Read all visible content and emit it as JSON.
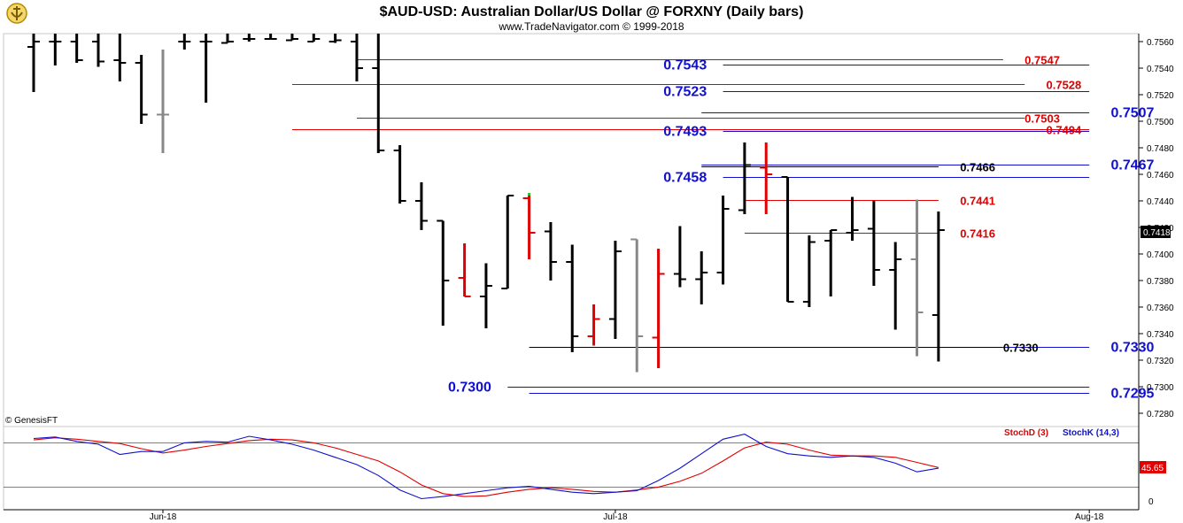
{
  "header": {
    "title": "$AUD-USD:  Australian Dollar/US Dollar @ FORXNY  (Daily bars)",
    "subtitle": "www.TradeNavigator.com © 1999-2018"
  },
  "colors": {
    "black": "#000000",
    "red": "#e00000",
    "gray": "#888888",
    "green": "#33bb33",
    "blue": "#1010d0",
    "stoch_d": "#e00000",
    "stoch_k": "#1010d0"
  },
  "chart_data": [
    {
      "type": "ohlc",
      "x_start_date": "2018-05-24",
      "ylim": [
        0.727,
        0.7566
      ],
      "y_ticks": [
        "0.7560",
        "0.7540",
        "0.7520",
        "0.7500",
        "0.7480",
        "0.7460",
        "0.7440",
        "0.7420",
        "0.7400",
        "0.7380",
        "0.7360",
        "0.7340",
        "0.7320",
        "0.7300",
        "0.7280"
      ],
      "x_ticks": [
        {
          "label": "Jun-18",
          "date": "2018-06-01"
        },
        {
          "label": "Jul-18",
          "date": "2018-07-02"
        },
        {
          "label": "Aug-18",
          "date": "2018-08-01"
        }
      ],
      "current_price_label": "0.7418",
      "watermark": "© GenesisFT",
      "bars": [
        {
          "date": "2018-05-24",
          "o": 0.7556,
          "h": 0.7566,
          "l": 0.7522,
          "c": 0.756,
          "color": "black"
        },
        {
          "date": "2018-05-25",
          "o": 0.756,
          "h": 0.7566,
          "l": 0.7542,
          "c": 0.756,
          "color": "black"
        },
        {
          "date": "2018-05-28",
          "o": 0.756,
          "h": 0.7566,
          "l": 0.7544,
          "c": 0.7546,
          "color": "black"
        },
        {
          "date": "2018-05-29",
          "o": 0.756,
          "h": 0.7566,
          "l": 0.7541,
          "c": 0.7545,
          "color": "black"
        },
        {
          "date": "2018-05-30",
          "o": 0.7546,
          "h": 0.7566,
          "l": 0.753,
          "c": 0.7544,
          "color": "black"
        },
        {
          "date": "2018-05-31",
          "o": 0.7544,
          "h": 0.755,
          "l": 0.7498,
          "c": 0.7505,
          "color": "black"
        },
        {
          "date": "2018-06-01",
          "o": 0.7505,
          "h": 0.7554,
          "l": 0.7476,
          "c": 0.7505,
          "color": "gray"
        },
        {
          "date": "2018-06-04",
          "o": 0.756,
          "h": 0.7566,
          "l": 0.7554,
          "c": 0.756,
          "color": "black"
        },
        {
          "date": "2018-06-05",
          "o": 0.756,
          "h": 0.7566,
          "l": 0.7514,
          "c": 0.756,
          "color": "black"
        },
        {
          "date": "2018-06-06",
          "o": 0.7559,
          "h": 0.7566,
          "l": 0.7559,
          "c": 0.756,
          "color": "black"
        },
        {
          "date": "2018-06-07",
          "o": 0.7562,
          "h": 0.7566,
          "l": 0.756,
          "c": 0.7562,
          "color": "black"
        },
        {
          "date": "2018-06-08",
          "o": 0.7562,
          "h": 0.7566,
          "l": 0.7562,
          "c": 0.7562,
          "color": "black"
        },
        {
          "date": "2018-06-11",
          "o": 0.7561,
          "h": 0.7566,
          "l": 0.7561,
          "c": 0.7562,
          "color": "black"
        },
        {
          "date": "2018-06-12",
          "o": 0.756,
          "h": 0.7566,
          "l": 0.756,
          "c": 0.7562,
          "color": "black"
        },
        {
          "date": "2018-06-13",
          "o": 0.756,
          "h": 0.7566,
          "l": 0.7559,
          "c": 0.7561,
          "color": "black"
        },
        {
          "date": "2018-06-14",
          "o": 0.756,
          "h": 0.7566,
          "l": 0.753,
          "c": 0.754,
          "color": "black"
        },
        {
          "date": "2018-06-15",
          "o": 0.754,
          "h": 0.7566,
          "l": 0.7476,
          "c": 0.7478,
          "color": "black"
        },
        {
          "date": "2018-06-18",
          "o": 0.7478,
          "h": 0.7482,
          "l": 0.7438,
          "c": 0.744,
          "color": "black"
        },
        {
          "date": "2018-06-19",
          "o": 0.744,
          "h": 0.7454,
          "l": 0.7418,
          "c": 0.7425,
          "color": "black"
        },
        {
          "date": "2018-06-20",
          "o": 0.7425,
          "h": 0.7425,
          "l": 0.7346,
          "c": 0.738,
          "color": "black"
        },
        {
          "date": "2018-06-21",
          "o": 0.7382,
          "h": 0.7408,
          "l": 0.7368,
          "c": 0.7368,
          "color": "red"
        },
        {
          "date": "2018-06-22",
          "o": 0.7368,
          "h": 0.7393,
          "l": 0.7344,
          "c": 0.7376,
          "color": "black"
        },
        {
          "date": "2018-06-25",
          "o": 0.7374,
          "h": 0.7444,
          "l": 0.7374,
          "c": 0.7444,
          "color": "black"
        },
        {
          "date": "2018-06-26",
          "o": 0.7442,
          "h": 0.7444,
          "l": 0.7396,
          "c": 0.7416,
          "color": "red"
        },
        {
          "date": "2018-06-27",
          "o": 0.7417,
          "h": 0.7424,
          "l": 0.738,
          "c": 0.7394,
          "color": "black"
        },
        {
          "date": "2018-06-28",
          "o": 0.7394,
          "h": 0.7407,
          "l": 0.7326,
          "c": 0.7338,
          "color": "black"
        },
        {
          "date": "2018-06-29",
          "o": 0.7338,
          "h": 0.7362,
          "l": 0.7331,
          "c": 0.7351,
          "color": "red"
        },
        {
          "date": "2018-07-02",
          "o": 0.7351,
          "h": 0.741,
          "l": 0.7336,
          "c": 0.7402,
          "color": "black"
        },
        {
          "date": "2018-07-03",
          "o": 0.7411,
          "h": 0.7411,
          "l": 0.7311,
          "c": 0.7338,
          "color": "gray"
        },
        {
          "date": "2018-07-04",
          "o": 0.7337,
          "h": 0.7404,
          "l": 0.7314,
          "c": 0.7385,
          "color": "red"
        },
        {
          "date": "2018-07-05",
          "o": 0.7385,
          "h": 0.7421,
          "l": 0.7375,
          "c": 0.7381,
          "color": "black"
        },
        {
          "date": "2018-07-06",
          "o": 0.7381,
          "h": 0.7402,
          "l": 0.7362,
          "c": 0.7386,
          "color": "black"
        },
        {
          "date": "2018-07-09",
          "o": 0.7386,
          "h": 0.7444,
          "l": 0.7377,
          "c": 0.7434,
          "color": "black"
        },
        {
          "date": "2018-07-10",
          "o": 0.7433,
          "h": 0.7484,
          "l": 0.743,
          "c": 0.7467,
          "color": "black"
        },
        {
          "date": "2018-07-11",
          "o": 0.7465,
          "h": 0.7484,
          "l": 0.743,
          "c": 0.746,
          "color": "red"
        },
        {
          "date": "2018-07-12",
          "o": 0.7458,
          "h": 0.7458,
          "l": 0.7364,
          "c": 0.7364,
          "color": "black"
        },
        {
          "date": "2018-07-13",
          "o": 0.7364,
          "h": 0.7414,
          "l": 0.736,
          "c": 0.7409,
          "color": "black"
        },
        {
          "date": "2018-07-16",
          "o": 0.741,
          "h": 0.7418,
          "l": 0.7368,
          "c": 0.7418,
          "color": "black"
        },
        {
          "date": "2018-07-17",
          "o": 0.7416,
          "h": 0.7443,
          "l": 0.741,
          "c": 0.7418,
          "color": "black"
        },
        {
          "date": "2018-07-18",
          "o": 0.7419,
          "h": 0.744,
          "l": 0.7376,
          "c": 0.7388,
          "color": "black"
        },
        {
          "date": "2018-07-19",
          "o": 0.7388,
          "h": 0.7409,
          "l": 0.7343,
          "c": 0.7396,
          "color": "black"
        },
        {
          "date": "2018-07-20",
          "o": 0.7396,
          "h": 0.7441,
          "l": 0.7323,
          "c": 0.7356,
          "color": "gray"
        },
        {
          "date": "2018-07-23",
          "o": 0.7354,
          "h": 0.7432,
          "l": 0.7319,
          "c": 0.7418,
          "color": "black"
        }
      ],
      "levels": [
        {
          "value": "0.7547",
          "y": 0.7547,
          "color": "red",
          "x0_date": "2018-06-14",
          "x1_date": "2018-07-26",
          "label_date": "2018-07-27",
          "anchor": "start"
        },
        {
          "value": "0.7543",
          "y": 0.7543,
          "color": "blue",
          "x0_date": "2018-07-09",
          "x1_date": "2018-08-01",
          "label_date": "2018-07-06",
          "anchor": "end"
        },
        {
          "value": "0.7528",
          "y": 0.7528,
          "color": "red",
          "x0_date": "2018-06-11",
          "x1_date": "2018-07-27",
          "label_date": "2018-07-30",
          "anchor": "start"
        },
        {
          "value": "0.7523",
          "y": 0.7523,
          "color": "blue",
          "x0_date": "2018-07-09",
          "x1_date": "2018-08-01",
          "label_date": "2018-07-06",
          "anchor": "end"
        },
        {
          "value": "0.7507",
          "y": 0.7507,
          "color": "blue",
          "x0_date": "2018-07-06",
          "x1_date": "2018-08-01",
          "label_date": "2018-08-02",
          "anchor": "start"
        },
        {
          "value": "0.7503",
          "y": 0.7503,
          "color": "red",
          "x0_date": "2018-06-14",
          "x1_date": "2018-07-27",
          "label_date": "2018-07-27",
          "anchor": "start"
        },
        {
          "value": "0.7494",
          "y": 0.7494,
          "color": "red",
          "x0_date": "2018-06-11",
          "x1_date": "2018-08-01",
          "label_date": "2018-07-30",
          "anchor": "start"
        },
        {
          "value": "0.7493",
          "y": 0.7493,
          "color": "blue",
          "x0_date": "2018-07-09",
          "x1_date": "2018-08-01",
          "label_date": "2018-07-06",
          "anchor": "end"
        },
        {
          "value": "0.7467",
          "y": 0.7467,
          "color": "blue",
          "x0_date": "2018-07-06",
          "x1_date": "2018-08-01",
          "label_date": "2018-08-02",
          "anchor": "start"
        },
        {
          "value": "0.7466",
          "y": 0.7466,
          "color": "black",
          "x0_date": "2018-07-06",
          "x1_date": "2018-07-23",
          "label_date": "2018-07-24",
          "anchor": "start"
        },
        {
          "value": "0.7458",
          "y": 0.7458,
          "color": "blue",
          "x0_date": "2018-07-09",
          "x1_date": "2018-08-01",
          "label_date": "2018-07-06",
          "anchor": "end"
        },
        {
          "value": "0.7441",
          "y": 0.7441,
          "color": "red",
          "x0_date": "2018-07-10",
          "x1_date": "2018-07-23",
          "label_date": "2018-07-24",
          "anchor": "start"
        },
        {
          "value": "0.7416",
          "y": 0.7416,
          "color": "red",
          "x0_date": "2018-07-10",
          "x1_date": "2018-07-23",
          "label_date": "2018-07-24",
          "anchor": "start"
        },
        {
          "value": "0.7330",
          "y": 0.733,
          "color": "black",
          "x0_date": "2018-06-26",
          "x1_date": "2018-07-26",
          "label_date": "2018-07-26",
          "anchor": "start"
        },
        {
          "value": "0.7330",
          "y": 0.733,
          "color": "blue",
          "x0_date": "2018-07-26",
          "x1_date": "2018-08-01",
          "label_date": "2018-08-02",
          "anchor": "start"
        },
        {
          "value": "0.7300",
          "y": 0.73,
          "color": "blue",
          "x0_date": "2018-06-25",
          "x1_date": "2018-08-01",
          "label_date": "2018-06-22",
          "anchor": "end"
        },
        {
          "value": "0.7295",
          "y": 0.7295,
          "color": "blue",
          "x0_date": "2018-06-26",
          "x1_date": "2018-08-01",
          "label_date": "2018-08-02",
          "anchor": "start"
        }
      ]
    },
    {
      "type": "line",
      "ylim": [
        0,
        100
      ],
      "y_ticks": [
        "0"
      ],
      "reference_lines": [
        20,
        80
      ],
      "legend": [
        "StochD (3)",
        "StochK (14,3)"
      ],
      "current_value_label": "45.65",
      "series": [
        {
          "name": "StochD (3)",
          "color": "red",
          "points": [
            [
              "2018-05-24",
              84
            ],
            [
              "2018-05-25",
              87
            ],
            [
              "2018-05-28",
              85
            ],
            [
              "2018-05-29",
              82
            ],
            [
              "2018-05-30",
              79
            ],
            [
              "2018-05-31",
              72
            ],
            [
              "2018-06-01",
              66
            ],
            [
              "2018-06-04",
              70
            ],
            [
              "2018-06-05",
              75
            ],
            [
              "2018-06-06",
              79
            ],
            [
              "2018-06-07",
              83
            ],
            [
              "2018-06-08",
              85
            ],
            [
              "2018-06-11",
              84
            ],
            [
              "2018-06-12",
              80
            ],
            [
              "2018-06-13",
              73
            ],
            [
              "2018-06-14",
              64
            ],
            [
              "2018-06-15",
              55
            ],
            [
              "2018-06-18",
              40
            ],
            [
              "2018-06-19",
              22
            ],
            [
              "2018-06-20",
              10
            ],
            [
              "2018-06-21",
              6
            ],
            [
              "2018-06-22",
              7
            ],
            [
              "2018-06-25",
              12
            ],
            [
              "2018-06-26",
              16
            ],
            [
              "2018-06-27",
              18
            ],
            [
              "2018-06-28",
              16
            ],
            [
              "2018-06-29",
              13
            ],
            [
              "2018-07-02",
              12
            ],
            [
              "2018-07-03",
              15
            ],
            [
              "2018-07-04",
              19
            ],
            [
              "2018-07-05",
              27
            ],
            [
              "2018-07-06",
              38
            ],
            [
              "2018-07-09",
              55
            ],
            [
              "2018-07-10",
              73
            ],
            [
              "2018-07-11",
              81
            ],
            [
              "2018-07-12",
              78
            ],
            [
              "2018-07-13",
              70
            ],
            [
              "2018-07-16",
              63
            ],
            [
              "2018-07-17",
              62
            ],
            [
              "2018-07-18",
              62
            ],
            [
              "2018-07-19",
              60
            ],
            [
              "2018-07-20",
              53
            ],
            [
              "2018-07-23",
              46
            ]
          ]
        },
        {
          "name": "StochK (14,3)",
          "color": "blue",
          "points": [
            [
              "2018-05-24",
              86
            ],
            [
              "2018-05-25",
              88
            ],
            [
              "2018-05-28",
              82
            ],
            [
              "2018-05-29",
              78
            ],
            [
              "2018-05-30",
              64
            ],
            [
              "2018-05-31",
              68
            ],
            [
              "2018-06-01",
              68
            ],
            [
              "2018-06-04",
              80
            ],
            [
              "2018-06-05",
              82
            ],
            [
              "2018-06-06",
              81
            ],
            [
              "2018-06-07",
              89
            ],
            [
              "2018-06-08",
              84
            ],
            [
              "2018-06-11",
              78
            ],
            [
              "2018-06-12",
              70
            ],
            [
              "2018-06-13",
              60
            ],
            [
              "2018-06-14",
              50
            ],
            [
              "2018-06-15",
              35
            ],
            [
              "2018-06-18",
              15
            ],
            [
              "2018-06-19",
              3
            ],
            [
              "2018-06-20",
              6
            ],
            [
              "2018-06-21",
              10
            ],
            [
              "2018-06-22",
              14
            ],
            [
              "2018-06-25",
              18
            ],
            [
              "2018-06-26",
              20
            ],
            [
              "2018-06-27",
              16
            ],
            [
              "2018-06-28",
              12
            ],
            [
              "2018-06-29",
              10
            ],
            [
              "2018-07-02",
              12
            ],
            [
              "2018-07-03",
              14
            ],
            [
              "2018-07-04",
              28
            ],
            [
              "2018-07-05",
              45
            ],
            [
              "2018-07-06",
              65
            ],
            [
              "2018-07-09",
              85
            ],
            [
              "2018-07-10",
              92
            ],
            [
              "2018-07-11",
              75
            ],
            [
              "2018-07-12",
              65
            ],
            [
              "2018-07-13",
              62
            ],
            [
              "2018-07-16",
              60
            ],
            [
              "2018-07-17",
              62
            ],
            [
              "2018-07-18",
              60
            ],
            [
              "2018-07-19",
              52
            ],
            [
              "2018-07-20",
              40
            ],
            [
              "2018-07-23",
              45
            ]
          ]
        }
      ]
    }
  ]
}
